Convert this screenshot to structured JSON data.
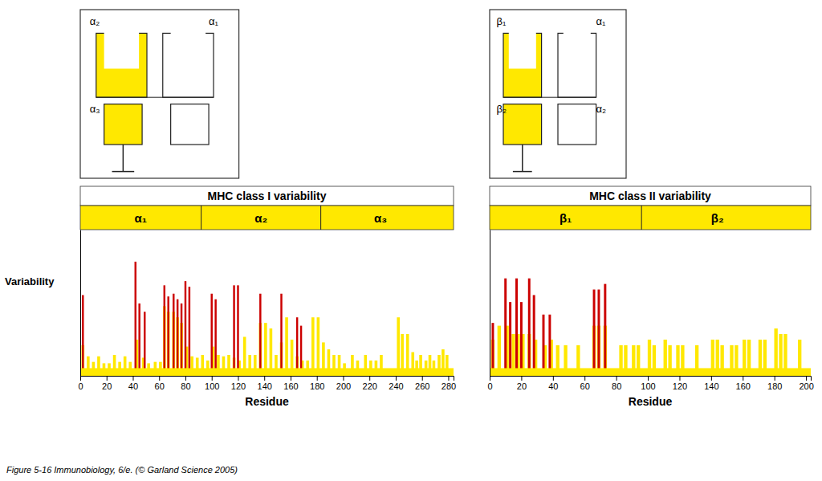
{
  "caption": "Figure 5-16  Immunobiology, 6/e. (© Garland Science 2005)",
  "chart_data": [
    {
      "type": "bar",
      "title": "MHC class I variability",
      "x_label": "Residue",
      "y_label": "Variability",
      "annotations": [
        "α₂",
        "α₁",
        "α₃"
      ],
      "xlim": [
        0,
        284
      ],
      "xticks": [
        0,
        20,
        40,
        60,
        80,
        100,
        120,
        140,
        160,
        180,
        200,
        220,
        240,
        260,
        280
      ],
      "ylim": [
        0,
        1.05
      ],
      "tick_labels": "x",
      "grid": false,
      "band": [
        0,
        0.055
      ],
      "segments": [
        {
          "label": "α₁",
          "range": [
            0,
            92
          ]
        },
        {
          "label": "α₂",
          "range": [
            92,
            183
          ]
        },
        {
          "label": "α₃",
          "range": [
            183,
            274
          ]
        }
      ],
      "series": [
        {
          "color": "#FFE800",
          "x": [
            2,
            6,
            10,
            14,
            18,
            22,
            26,
            30,
            34,
            38,
            43,
            48,
            52,
            57,
            61,
            64,
            67,
            71,
            74,
            77,
            81,
            85,
            89,
            93,
            97,
            101,
            105,
            109,
            113,
            117,
            121,
            125,
            129,
            133,
            137,
            141,
            145,
            149,
            153,
            157,
            161,
            165,
            169,
            173,
            177,
            181,
            185,
            189,
            193,
            197,
            201,
            207,
            211,
            217,
            221,
            225,
            229,
            242,
            245,
            249,
            253,
            256,
            259,
            263,
            266,
            269,
            273,
            276,
            279
          ],
          "values": [
            0.22,
            0.14,
            0.1,
            0.14,
            0.09,
            0.09,
            0.15,
            0.1,
            0.14,
            0.1,
            0.26,
            0.13,
            0.09,
            0.1,
            0.1,
            0.5,
            0.46,
            0.46,
            0.42,
            0.38,
            0.21,
            0.14,
            0.13,
            0.15,
            0.11,
            0.21,
            0.15,
            0.14,
            0.15,
            0.13,
            0.11,
            0.28,
            0.15,
            0.15,
            0.38,
            0.38,
            0.34,
            0.15,
            0.24,
            0.42,
            0.26,
            0.14,
            0.11,
            0.11,
            0.42,
            0.42,
            0.24,
            0.19,
            0.15,
            0.15,
            0.09,
            0.15,
            0.11,
            0.15,
            0.11,
            0.11,
            0.15,
            0.42,
            0.3,
            0.3,
            0.17,
            0.11,
            0.15,
            0.11,
            0.15,
            0.11,
            0.15,
            0.19,
            0.15
          ]
        },
        {
          "color": "#CC0000",
          "x": [
            2,
            42,
            45,
            49,
            64,
            67,
            71,
            74,
            77,
            80,
            83,
            100,
            103,
            117,
            120,
            137,
            153,
            165,
            168
          ],
          "values": [
            0.58,
            0.82,
            0.52,
            0.46,
            0.65,
            0.57,
            0.59,
            0.55,
            0.52,
            0.68,
            0.64,
            0.59,
            0.55,
            0.65,
            0.65,
            0.59,
            0.59,
            0.42,
            0.36
          ]
        }
      ]
    },
    {
      "type": "bar",
      "title": "MHC class II variability",
      "x_label": "Residue",
      "annotations": [
        "β₁",
        "α₁",
        "β₂",
        "α₂"
      ],
      "xlim": [
        0,
        203
      ],
      "xticks": [
        0,
        20,
        40,
        60,
        80,
        100,
        120,
        140,
        160,
        180,
        200
      ],
      "ylim": [
        0,
        1.05
      ],
      "tick_labels": "x",
      "grid": false,
      "band": [
        0,
        0.055
      ],
      "segments": [
        {
          "label": "β₁",
          "range": [
            0,
            96
          ]
        },
        {
          "label": "β₂",
          "range": [
            96,
            192
          ]
        }
      ],
      "series": [
        {
          "color": "#FFE800",
          "x": [
            2,
            6,
            11,
            15,
            18,
            21,
            25,
            29,
            35,
            39,
            43,
            48,
            56,
            66,
            69,
            73,
            83,
            86,
            91,
            94,
            101,
            104,
            111,
            114,
            119,
            122,
            131,
            141,
            144,
            147,
            153,
            156,
            161,
            164,
            171,
            174,
            181,
            184,
            187,
            196
          ],
          "values": [
            0.26,
            0.36,
            0.36,
            0.3,
            0.3,
            0.3,
            0.3,
            0.26,
            0.22,
            0.26,
            0.22,
            0.22,
            0.22,
            0.36,
            0.36,
            0.36,
            0.22,
            0.22,
            0.22,
            0.22,
            0.26,
            0.22,
            0.26,
            0.22,
            0.22,
            0.22,
            0.22,
            0.26,
            0.26,
            0.22,
            0.22,
            0.22,
            0.26,
            0.26,
            0.26,
            0.26,
            0.34,
            0.3,
            0.3,
            0.26
          ]
        },
        {
          "color": "#CC0000",
          "x": [
            2,
            10,
            13,
            17,
            20,
            25,
            28,
            34,
            38,
            66,
            69,
            73
          ],
          "values": [
            0.38,
            0.7,
            0.53,
            0.7,
            0.53,
            0.7,
            0.58,
            0.44,
            0.44,
            0.62,
            0.62,
            0.66
          ]
        }
      ]
    }
  ]
}
